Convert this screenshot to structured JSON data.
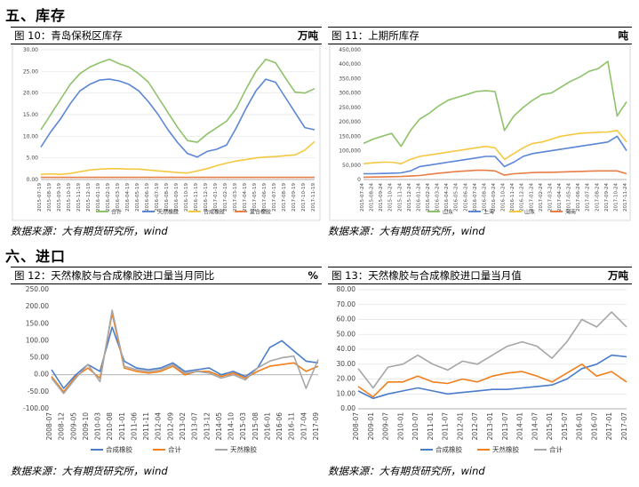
{
  "sections": {
    "inventory": "五、库存",
    "imports": "六、进口"
  },
  "source": "数据来源：大有期货研究所，wind",
  "charts": {
    "c10": {
      "title": "图 10：青岛保税区库存",
      "unit": "万吨"
    },
    "c11": {
      "title": "图 11：上期所库存",
      "unit": "吨"
    },
    "c12": {
      "title": "图 12：天然橡胶与合成橡胶进口量当月同比",
      "unit": "%"
    },
    "c13": {
      "title": "图 13：天然橡胶与合成橡胶进口量当月值",
      "unit": "万吨"
    }
  },
  "chart_data": [
    {
      "id": "c10",
      "type": "line",
      "ylim": [
        0,
        30
      ],
      "yticks": [
        "0.00",
        "5.00",
        "10.00",
        "15.00",
        "20.00",
        "25.00",
        "30.00"
      ],
      "xlabels": [
        "2015-07-19",
        "2015-08-19",
        "2015-09-19",
        "2015-10-19",
        "2015-11-19",
        "2015-12-19",
        "2016-01-19",
        "2016-02-19",
        "2016-03-19",
        "2016-04-19",
        "2016-05-19",
        "2016-06-19",
        "2016-07-19",
        "2016-08-19",
        "2016-09-19",
        "2016-10-19",
        "2016-11-19",
        "2016-12-19",
        "2017-01-19",
        "2017-02-19",
        "2017-03-19",
        "2017-04-19",
        "2017-05-19",
        "2017-06-19",
        "2017-07-19",
        "2017-08-19",
        "2017-09-19",
        "2017-10-19",
        "2017-11-19"
      ],
      "series": [
        {
          "name": "合计",
          "color": "#8DC26A",
          "values": [
            11.5,
            15.0,
            18.5,
            22.0,
            24.5,
            26.0,
            27.0,
            27.8,
            26.8,
            26.0,
            24.5,
            22.5,
            19.0,
            15.5,
            12.0,
            9.0,
            8.6,
            10.5,
            12.0,
            13.5,
            16.5,
            21.0,
            25.0,
            27.8,
            27.0,
            23.5,
            20.2,
            20.0,
            21.0
          ]
        },
        {
          "name": "天然橡胶",
          "color": "#5B86D6",
          "values": [
            7.5,
            11.0,
            14.0,
            17.5,
            20.5,
            22.0,
            23.0,
            23.2,
            22.8,
            22.0,
            20.5,
            18.0,
            15.0,
            11.5,
            8.5,
            6.0,
            5.2,
            6.5,
            7.0,
            8.0,
            12.0,
            16.5,
            20.5,
            23.2,
            22.5,
            19.0,
            15.5,
            12.0,
            11.5
          ]
        },
        {
          "name": "合成橡胶",
          "color": "#F5C842",
          "values": [
            1.2,
            1.3,
            1.2,
            1.4,
            1.8,
            2.2,
            2.4,
            2.5,
            2.5,
            2.4,
            2.4,
            2.2,
            2.0,
            1.8,
            1.6,
            1.5,
            2.0,
            2.5,
            3.2,
            3.8,
            4.3,
            4.6,
            5.0,
            5.2,
            5.3,
            5.5,
            5.7,
            6.8,
            8.8
          ]
        },
        {
          "name": "复合橡胶",
          "color": "#E67E45",
          "values": [
            0.5,
            0.5,
            0.5,
            0.5,
            0.5,
            0.5,
            0.5,
            0.5,
            0.5,
            0.5,
            0.5,
            0.5,
            0.5,
            0.5,
            0.5,
            0.5,
            0.5,
            0.5,
            0.5,
            0.5,
            0.5,
            0.5,
            0.5,
            0.5,
            0.5,
            0.5,
            0.5,
            0.5,
            0.5
          ]
        }
      ]
    },
    {
      "id": "c11",
      "type": "line",
      "ylim": [
        0,
        450000
      ],
      "yticks": [
        "0",
        "50,000",
        "100,000",
        "150,000",
        "200,000",
        "250,000",
        "300,000",
        "350,000",
        "400,000",
        "450,000"
      ],
      "xlabels": [
        "2015-07-24",
        "2015-08-24",
        "2015-09-24",
        "2015-10-24",
        "2015-11-24",
        "2015-12-24",
        "2016-01-24",
        "2016-02-24",
        "2016-03-24",
        "2016-04-24",
        "2016-05-24",
        "2016-06-24",
        "2016-07-24",
        "2016-08-24",
        "2016-09-24",
        "2016-10-24",
        "2016-11-24",
        "2016-12-24",
        "2017-01-24",
        "2017-02-24",
        "2017-03-24",
        "2017-04-24",
        "2017-05-24",
        "2017-06-24",
        "2017-07-24",
        "2017-08-24",
        "2017-09-24",
        "2017-10-24",
        "2017-11-24"
      ],
      "series": [
        {
          "name": "山东",
          "color": "#8DC26A",
          "values": [
            125000,
            140000,
            150000,
            160000,
            115000,
            170000,
            210000,
            230000,
            255000,
            275000,
            285000,
            295000,
            305000,
            308000,
            305000,
            170000,
            220000,
            250000,
            275000,
            295000,
            300000,
            320000,
            340000,
            355000,
            375000,
            385000,
            410000,
            220000,
            270000
          ]
        },
        {
          "name": "上海",
          "color": "#5B86D6",
          "values": [
            20000,
            20000,
            21000,
            22000,
            23000,
            30000,
            45000,
            50000,
            55000,
            60000,
            65000,
            70000,
            75000,
            80000,
            80000,
            45000,
            60000,
            80000,
            90000,
            95000,
            100000,
            105000,
            110000,
            115000,
            120000,
            125000,
            130000,
            150000,
            100000
          ]
        },
        {
          "name": "山东",
          "color": "#F5C842",
          "values": [
            55000,
            58000,
            60000,
            60000,
            55000,
            70000,
            80000,
            85000,
            90000,
            95000,
            100000,
            105000,
            110000,
            115000,
            110000,
            70000,
            90000,
            110000,
            125000,
            130000,
            140000,
            150000,
            155000,
            160000,
            162000,
            164000,
            165000,
            170000,
            130000
          ]
        },
        {
          "name": "海南",
          "color": "#E67E45",
          "values": [
            8000,
            8500,
            9000,
            10000,
            10500,
            12000,
            14000,
            18000,
            22000,
            25000,
            28000,
            30000,
            32000,
            32000,
            30000,
            15000,
            20000,
            22000,
            24000,
            25000,
            25000,
            26000,
            27000,
            28000,
            29000,
            30000,
            30000,
            30000,
            20000
          ]
        }
      ]
    },
    {
      "id": "c12",
      "type": "line",
      "ylim": [
        -100,
        250
      ],
      "yticks": [
        "-100.00",
        "-50.00",
        "0.00",
        "50.00",
        "100.00",
        "150.00",
        "200.00",
        "250.00"
      ],
      "xlabels": [
        "2008-07",
        "2008-12",
        "2009-05",
        "2009-10",
        "2010-03",
        "2010-08",
        "2011-01",
        "2011-06",
        "2011-11",
        "2012-04",
        "2012-09",
        "2013-02",
        "2013-07",
        "2013-12",
        "2014-05",
        "2014-10",
        "2015-03",
        "2015-08",
        "2016-01",
        "2016-06",
        "2016-11",
        "2017-04",
        "2017-09"
      ],
      "series": [
        {
          "name": "合成橡胶",
          "color": "#4A7CC9",
          "values": [
            15,
            -40,
            0,
            30,
            10,
            140,
            40,
            20,
            15,
            20,
            35,
            10,
            15,
            20,
            0,
            10,
            -5,
            20,
            80,
            100,
            70,
            40,
            35
          ]
        },
        {
          "name": "合计",
          "color": "#F07F1C",
          "values": [
            -5,
            -50,
            -5,
            20,
            -10,
            180,
            20,
            10,
            5,
            10,
            25,
            0,
            10,
            10,
            -5,
            5,
            -10,
            10,
            25,
            30,
            35,
            10,
            25
          ]
        },
        {
          "name": "天然橡胶",
          "color": "#A6A6A6",
          "values": [
            -10,
            -55,
            -10,
            30,
            -20,
            190,
            25,
            15,
            10,
            15,
            30,
            5,
            10,
            5,
            -10,
            0,
            -15,
            20,
            40,
            50,
            55,
            -40,
            45
          ]
        }
      ]
    },
    {
      "id": "c13",
      "type": "line",
      "ylim": [
        0,
        80
      ],
      "yticks": [
        "0.00",
        "10.00",
        "20.00",
        "30.00",
        "40.00",
        "50.00",
        "60.00",
        "70.00",
        "80.00"
      ],
      "xlabels": [
        "2008-07",
        "2009-01",
        "2009-07",
        "2010-01",
        "2010-07",
        "2011-01",
        "2011-07",
        "2012-01",
        "2012-07",
        "2013-01",
        "2013-07",
        "2014-01",
        "2014-07",
        "2015-01",
        "2015-07",
        "2016-01",
        "2016-07",
        "2017-01",
        "2017-07"
      ],
      "series": [
        {
          "name": "合成橡胶",
          "color": "#4A7CC9",
          "values": [
            12,
            7,
            10,
            12,
            14,
            12,
            10,
            11,
            12,
            13,
            13,
            14,
            15,
            16,
            20,
            27,
            30,
            36,
            35
          ]
        },
        {
          "name": "天然橡胶",
          "color": "#F07F1C",
          "values": [
            15,
            8,
            18,
            18,
            22,
            18,
            17,
            20,
            18,
            22,
            24,
            25,
            22,
            18,
            24,
            30,
            22,
            25,
            18
          ]
        },
        {
          "name": "合计",
          "color": "#A6A6A6",
          "values": [
            27,
            14,
            28,
            30,
            36,
            30,
            26,
            32,
            30,
            36,
            42,
            45,
            42,
            34,
            45,
            60,
            55,
            65,
            55
          ]
        }
      ]
    }
  ]
}
